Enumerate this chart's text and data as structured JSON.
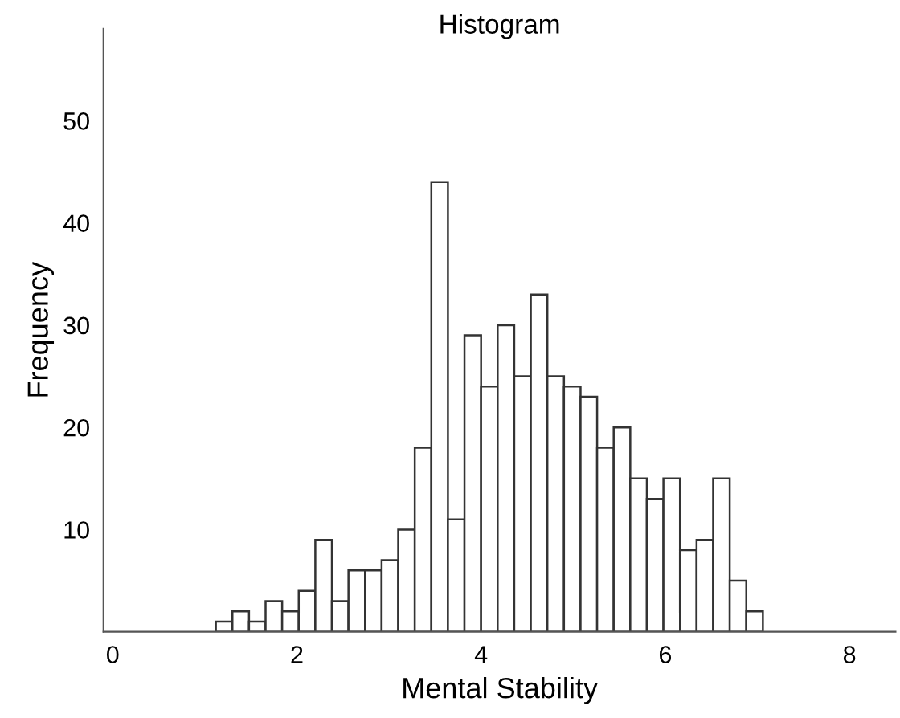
{
  "chart_data": {
    "type": "histogram",
    "title": "Histogram",
    "xlabel": "Mental Stability",
    "ylabel": "Frequency",
    "bins": [
      1.12,
      1.3,
      1.48,
      1.66,
      1.84,
      2.02,
      2.2,
      2.38,
      2.56,
      2.74,
      2.92,
      3.1,
      3.28,
      3.46,
      3.64,
      3.82,
      4.0,
      4.18,
      4.36,
      4.54,
      4.72,
      4.9,
      5.08,
      5.26,
      5.44,
      5.62,
      5.8,
      5.98,
      6.16,
      6.34,
      6.52,
      6.7,
      6.88,
      7.06
    ],
    "values": [
      1,
      2,
      1,
      3,
      2,
      4,
      9,
      3,
      6,
      6,
      7,
      10,
      18,
      44,
      11,
      29,
      24,
      30,
      25,
      33,
      25,
      24,
      23,
      18,
      20,
      15,
      13,
      15,
      8,
      9,
      15,
      5,
      2
    ],
    "color": "#ffffff",
    "xlim": [
      -0.1,
      8.5
    ],
    "xticks": [
      0,
      2,
      4,
      6,
      8
    ],
    "ylim": [
      0,
      59
    ],
    "yticks": [
      10,
      20,
      30,
      40,
      50
    ],
    "grid": false
  }
}
